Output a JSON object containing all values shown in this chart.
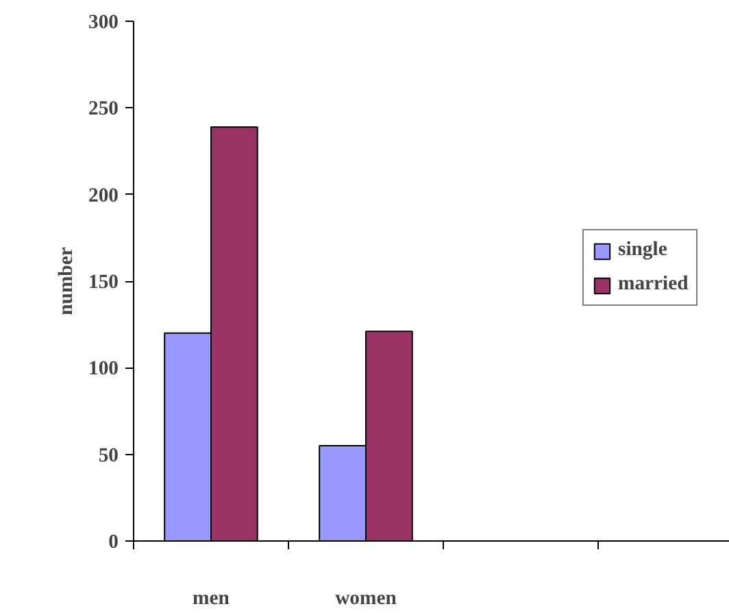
{
  "chart_data": {
    "type": "bar",
    "ylabel": "number",
    "categories": [
      "men",
      "women",
      null,
      null
    ],
    "series": [
      {
        "name": "single",
        "color": "#9999ff",
        "values": [
          120,
          55,
          null,
          null
        ]
      },
      {
        "name": "married",
        "color": "#993366",
        "values": [
          239,
          121,
          null,
          null
        ]
      }
    ],
    "ylim": [
      0,
      300
    ],
    "yticks": [
      0,
      50,
      100,
      150,
      200,
      250,
      300
    ],
    "grid": false,
    "legend": "right"
  }
}
